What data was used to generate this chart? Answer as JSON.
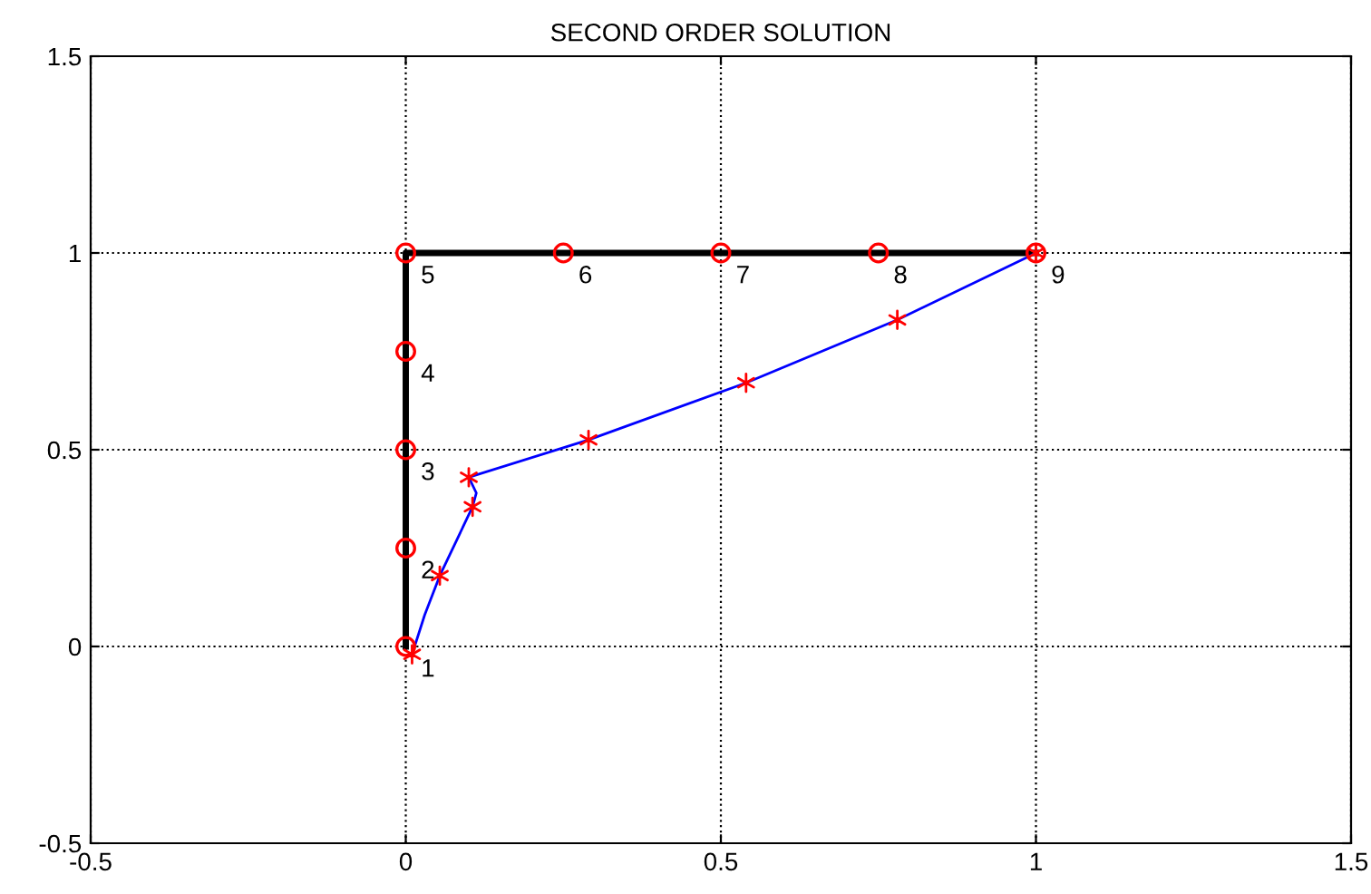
{
  "chart_data": {
    "type": "line",
    "title": "SECOND ORDER SOLUTION",
    "series": [
      {
        "color": "#000000",
        "x": [
          0,
          0,
          0,
          0,
          0,
          0.25,
          0.5,
          0.75,
          1
        ],
        "values": [
          0,
          0.25,
          0.5,
          0.75,
          1,
          1,
          1,
          1,
          1
        ],
        "marker": "none"
      },
      {
        "type": "scatter",
        "color": "#ff0000",
        "x": [
          0,
          0,
          0,
          0,
          0,
          0.25,
          0.5,
          0.75,
          1
        ],
        "values": [
          0,
          0.25,
          0.5,
          0.75,
          1,
          1,
          1,
          1,
          1
        ],
        "marker": "circle"
      },
      {
        "color": "#0000ff",
        "x": [
          0.01,
          0.03,
          0.054,
          0.106,
          0.112,
          0.1,
          0.29,
          0.54,
          0.78,
          1
        ],
        "values": [
          -0.02,
          0.08,
          0.18,
          0.355,
          0.39,
          0.43,
          0.525,
          0.67,
          0.83,
          1
        ],
        "marker": "none"
      },
      {
        "type": "scatter",
        "color": "#ff0000",
        "x": [
          0.01,
          0.054,
          0.106,
          0.1,
          0.29,
          0.54,
          0.78,
          1
        ],
        "values": [
          -0.02,
          0.18,
          0.355,
          0.43,
          0.525,
          0.67,
          0.83,
          1
        ],
        "marker": "cross"
      }
    ],
    "annotations": [
      {
        "text": "1",
        "x": 0,
        "y": 0
      },
      {
        "text": "2",
        "x": 0,
        "y": 0.25
      },
      {
        "text": "3",
        "x": 0,
        "y": 0.5
      },
      {
        "text": "4",
        "x": 0,
        "y": 0.75
      },
      {
        "text": "5",
        "x": 0,
        "y": 1
      },
      {
        "text": "6",
        "x": 0.25,
        "y": 1
      },
      {
        "text": "7",
        "x": 0.5,
        "y": 1
      },
      {
        "text": "8",
        "x": 0.75,
        "y": 1
      },
      {
        "text": "9",
        "x": 1,
        "y": 1
      }
    ],
    "xlim": [
      -0.5,
      1.5
    ],
    "ylim": [
      -0.5,
      1.5
    ],
    "xticks": [
      -0.5,
      0,
      0.5,
      1,
      1.5
    ],
    "yticks": [
      -0.5,
      0,
      0.5,
      1,
      1.5
    ],
    "grid": true,
    "line_style": "solid"
  }
}
